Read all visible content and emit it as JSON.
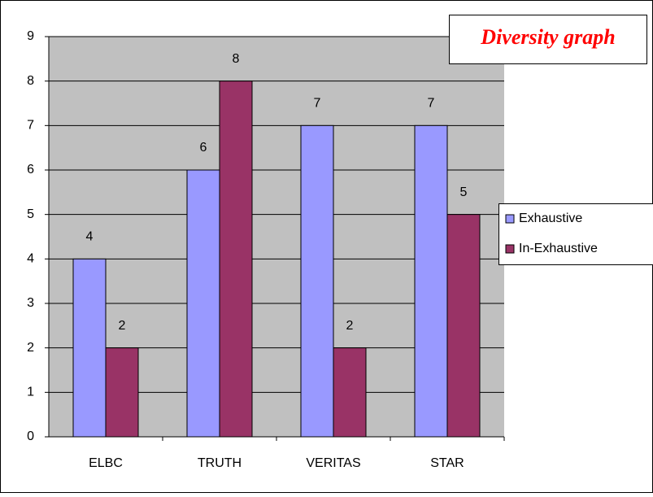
{
  "chart_data": {
    "type": "bar",
    "title": "Diversity graph",
    "categories": [
      "ELBC",
      "TRUTH",
      "VERITAS",
      "STAR"
    ],
    "series": [
      {
        "name": "Exhaustive",
        "color": "#9999ff",
        "values": [
          4,
          6,
          7,
          7
        ]
      },
      {
        "name": "In-Exhaustive",
        "color": "#993366",
        "values": [
          2,
          8,
          2,
          5
        ]
      }
    ],
    "ylim": [
      0,
      9
    ],
    "yticks": [
      0,
      1,
      2,
      3,
      4,
      5,
      6,
      7,
      8,
      9
    ],
    "grid": true,
    "legend": "right"
  }
}
